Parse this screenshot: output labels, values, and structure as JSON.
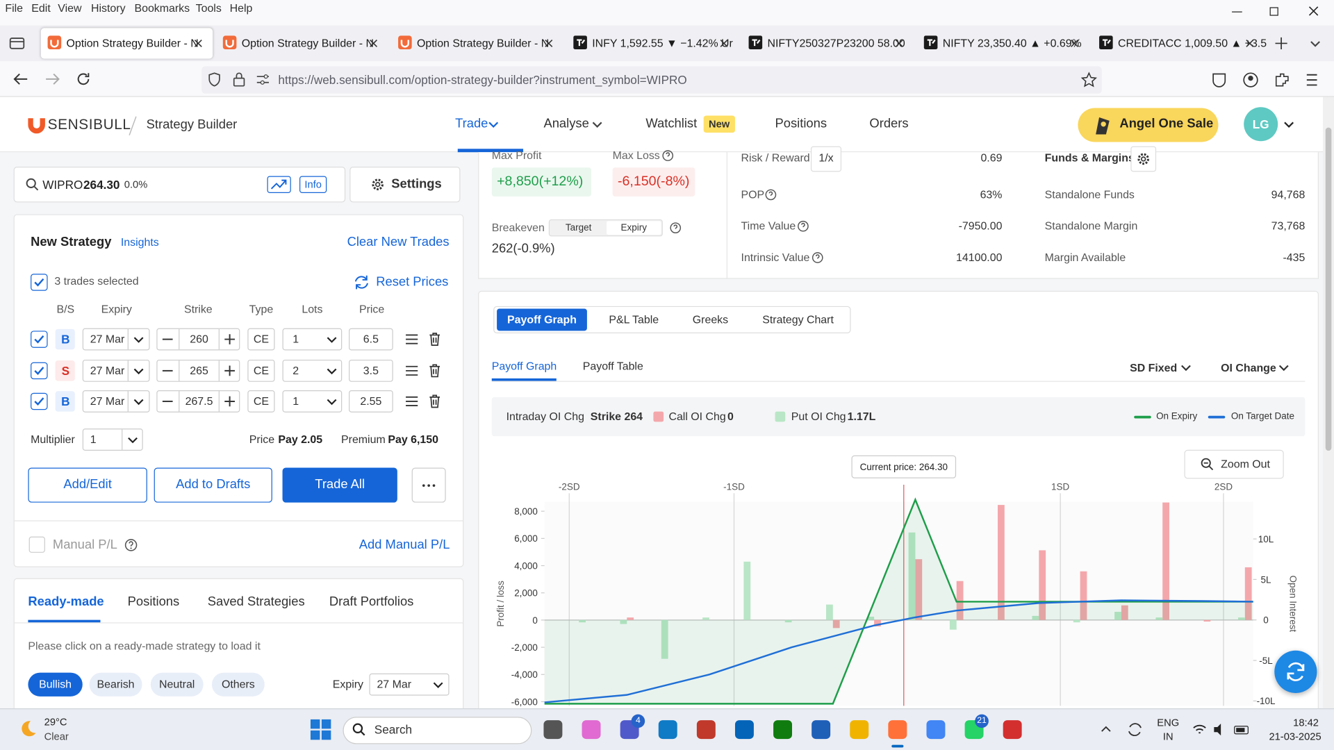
{
  "browser": {
    "menu": [
      "File",
      "Edit",
      "View",
      "History",
      "Bookmarks",
      "Tools",
      "Help"
    ],
    "tabs": [
      "Option Strategy Builder - N",
      "Option Strategy Builder - N",
      "Option Strategy Builder - N",
      "INFY 1,592.55 ▼ −1.42% Ur",
      "NIFTY250327P23200 58.00",
      "NIFTY 23,350.40 ▲ +0.69%",
      "CREDITACC 1,009.50 ▲ +3.5"
    ],
    "url": "https://web.sensibull.com/option-strategy-builder?instrument_symbol=WIPRO"
  },
  "header": {
    "logo": "SENSIBULL",
    "page": "Strategy Builder",
    "nav": [
      "Trade",
      "Analyse",
      "Watchlist",
      "Positions",
      "Orders"
    ],
    "badge": "New",
    "promo": "Angel One Sale",
    "avatar": "LG"
  },
  "search": {
    "symbol": "WIPRO",
    "price": "264.30",
    "change": "0.0%",
    "info": "Info",
    "settings": "Settings"
  },
  "strategy": {
    "title": "New Strategy",
    "insights": "Insights",
    "clear": "Clear New Trades",
    "selected": "3 trades selected",
    "reset": "Reset Prices",
    "columns": [
      "B/S",
      "Expiry",
      "Strike",
      "Type",
      "Lots",
      "Price"
    ],
    "rows": [
      [
        "B",
        "27 Mar",
        "260",
        "CE",
        "1",
        "6.5"
      ],
      [
        "S",
        "27 Mar",
        "265",
        "CE",
        "2",
        "3.5"
      ],
      [
        "B",
        "27 Mar",
        "267.5",
        "CE",
        "1",
        "2.55"
      ]
    ],
    "multiplier_label": "Multiplier",
    "multiplier": "1",
    "price_label": "Price",
    "price": "Pay 2.05",
    "premium_label": "Premium",
    "premium": "Pay 6,150",
    "buttons": [
      "Add/Edit",
      "Add to Drafts",
      "Trade All"
    ],
    "manual": "Manual P/L",
    "add_manual": "Add Manual P/L"
  },
  "library": {
    "tabs": [
      "Ready-made",
      "Positions",
      "Saved Strategies",
      "Draft Portfolios"
    ],
    "hint": "Please click on a ready-made strategy to load it",
    "filters": [
      "Bullish",
      "Bearish",
      "Neutral",
      "Others"
    ],
    "expiry_label": "Expiry",
    "expiry": "27 Mar"
  },
  "stats": {
    "max_profit_label": "Max Profit",
    "max_profit": "+8,850(+12%)",
    "max_loss_label": "Max Loss",
    "max_loss": "-6,150(-8%)",
    "breakeven_label": "Breakeven",
    "breakeven_modes": [
      "Target",
      "Expiry"
    ],
    "breakeven": "262(-0.9%)",
    "metrics": [
      [
        "Risk / Reward",
        "0.69"
      ],
      [
        "POP",
        "63%"
      ],
      [
        "Time Value",
        "-7950.00"
      ],
      [
        "Intrinsic Value",
        "14100.00"
      ]
    ],
    "rr_toggle": "1/x",
    "funds_title": "Funds & Margins",
    "funds": [
      [
        "Standalone Funds",
        "94,768"
      ],
      [
        "Standalone Margin",
        "73,768"
      ],
      [
        "Margin Available",
        "-435"
      ]
    ]
  },
  "chart_tabs": {
    "main": [
      "Payoff Graph",
      "P&L Table",
      "Greeks",
      "Strategy Chart"
    ],
    "sub": [
      "Payoff Graph",
      "Payoff Table"
    ],
    "dropdowns": [
      "SD Fixed",
      "OI Change"
    ],
    "zoom": "Zoom Out"
  },
  "chart_data": {
    "type": "line",
    "ylabel": "Profit / loss",
    "y2label": "Open Interest",
    "readout": {
      "label": "Intraday OI Chg",
      "strike": "Strike 264",
      "call": "0",
      "put": "1.17L"
    },
    "xlim": [
      242.5,
      285.5
    ],
    "ylim": [
      -6300,
      8700
    ],
    "y2lim": [
      -10.6,
      14.6
    ],
    "yticks": [
      {
        "value": 8000,
        "label": "8,000"
      },
      {
        "value": 6000,
        "label": "6,000"
      },
      {
        "value": 4000,
        "label": "4,000"
      },
      {
        "value": 2000,
        "label": "2,000"
      },
      0,
      {
        "value": -2000,
        "label": "-2,000"
      },
      {
        "value": -4000,
        "label": "-4,000"
      },
      {
        "value": -6000,
        "label": "-6,000"
      }
    ],
    "y2ticks": [
      {
        "value": 10,
        "label": "10L"
      },
      {
        "value": 5,
        "label": "5L"
      },
      0,
      {
        "value": -5,
        "label": "-5L"
      },
      {
        "value": -10,
        "label": "-10L"
      }
    ],
    "sd_markers": [
      {
        "value": 244,
        "label": "-2SD"
      },
      {
        "value": 254,
        "label": "-1SD"
      },
      {
        "value": 273.8,
        "label": "1SD"
      },
      {
        "value": 283.7,
        "label": "2SD"
      }
    ],
    "current_price": {
      "value": 264.3,
      "label": "Current price: 264.30"
    },
    "series": [
      {
        "name": "On Expiry",
        "color": "#1e9e4a",
        "x": [
          242.5,
          260,
          265,
          267.5,
          285.5
        ],
        "values": [
          -6150,
          -6150,
          8850,
          1350,
          1350
        ]
      },
      {
        "name": "On Target Date",
        "color": "#1f6fd6",
        "x": [
          242.5,
          247.5,
          252.5,
          257.5,
          262.5,
          265,
          267.5,
          272.5,
          277.5,
          282.5,
          285.5
        ],
        "values": [
          -6050,
          -5500,
          -4000,
          -2000,
          -400,
          200,
          700,
          1250,
          1450,
          1400,
          1350
        ]
      },
      {
        "name": "Call OI Chg",
        "type": "bar",
        "axis": "y2",
        "color": "#f4a7ab",
        "x": [
          245,
          247.5,
          250,
          252.5,
          255,
          257.5,
          260,
          262.5,
          265,
          267.5,
          270,
          272.5,
          275,
          277.5,
          280,
          282.5,
          285
        ],
        "values": [
          0,
          0.3,
          0,
          0,
          0,
          0,
          -1,
          -0.8,
          7.5,
          4.8,
          14.2,
          8.6,
          6,
          1.8,
          14.5,
          -0.2,
          6.5
        ]
      },
      {
        "name": "Put OI Chg",
        "type": "bar",
        "axis": "y2",
        "color": "#b9e6c6",
        "x": [
          245,
          247.5,
          250,
          252.5,
          255,
          257.5,
          260,
          262.5,
          265,
          267.5,
          270,
          272.5,
          275,
          277.5,
          280,
          282.5,
          285
        ],
        "values": [
          -0.3,
          -0.5,
          -4.8,
          0.3,
          7.2,
          -0.3,
          1.9,
          0.4,
          10.8,
          -1.2,
          0,
          0.5,
          -0.3,
          1,
          0.3,
          0,
          0.3
        ]
      }
    ]
  },
  "taskbar": {
    "temperature": "29°C",
    "weather": "Clear",
    "search": "Search",
    "badges": [
      "4",
      "21"
    ],
    "language": [
      "ENG",
      "IN"
    ],
    "time": "18:42",
    "date": "21-03-2025"
  }
}
